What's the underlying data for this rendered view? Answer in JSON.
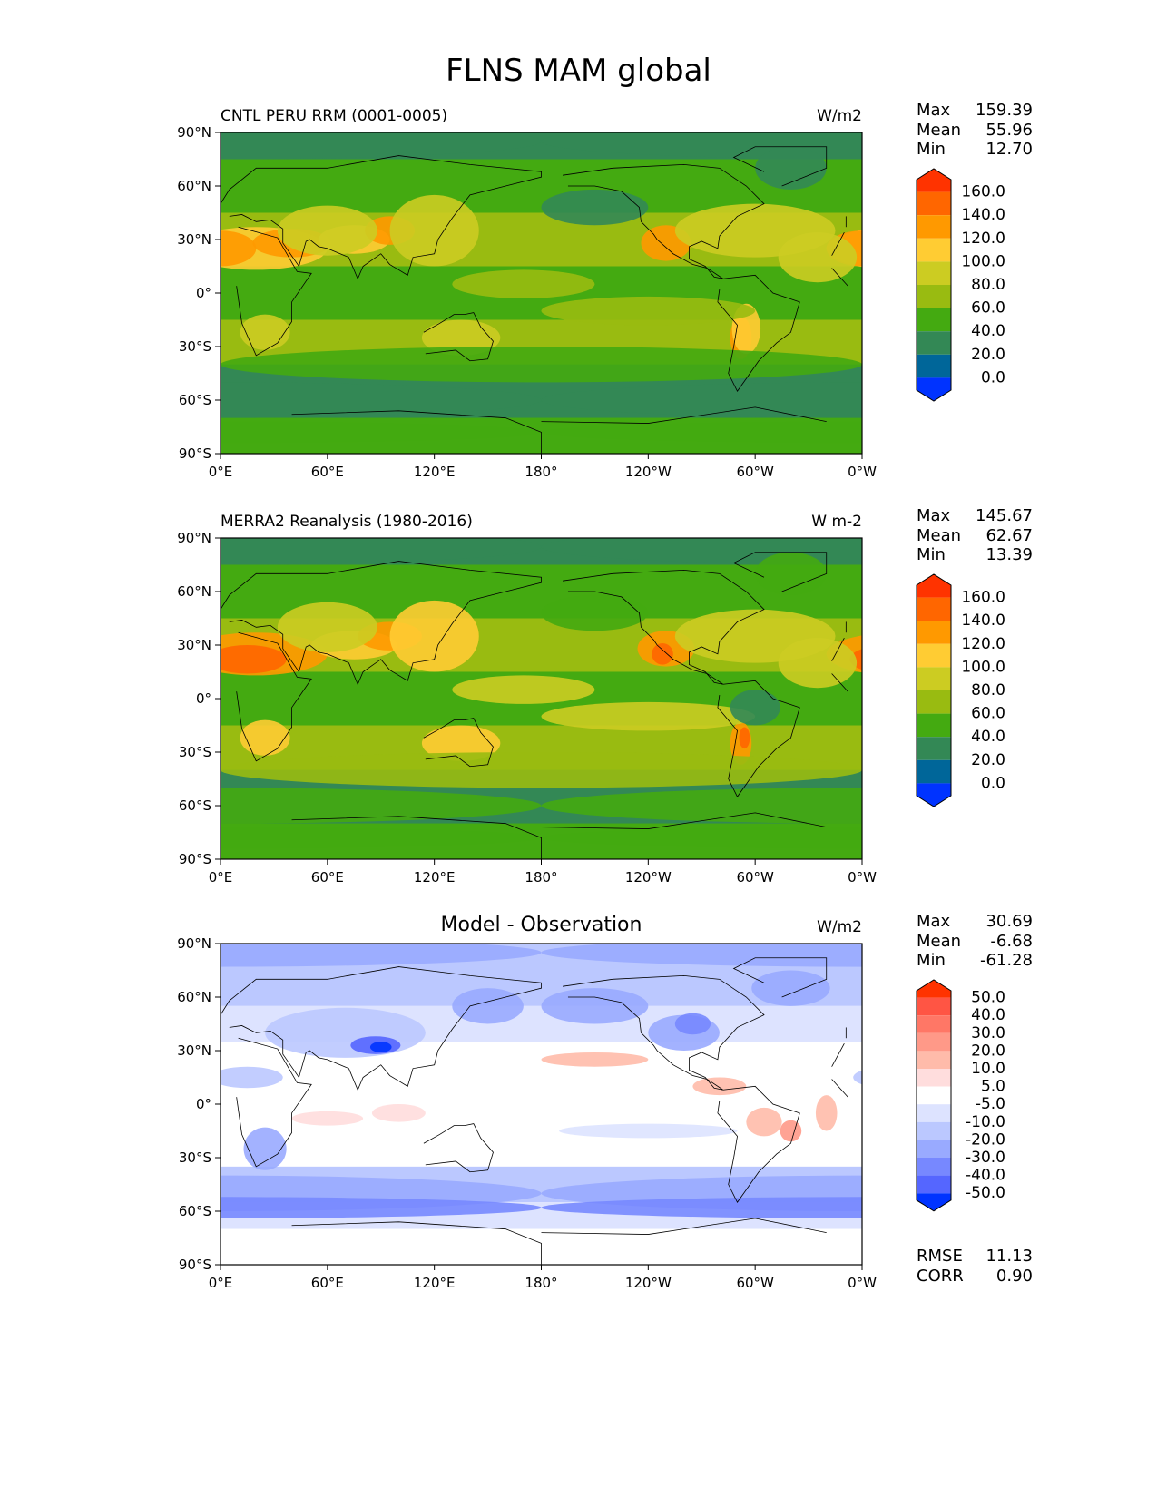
{
  "figure_title": "FLNS MAM global",
  "x_ticks": [
    "0°E",
    "60°E",
    "120°E",
    "180°",
    "120°W",
    "60°W",
    "0°W"
  ],
  "y_ticks": [
    "90°N",
    "60°N",
    "30°N",
    "0°",
    "30°S",
    "60°S",
    "90°S"
  ],
  "panels": [
    {
      "left_title": "CNTL PERU RRM (0001-0005)",
      "center_title": "",
      "units": "W/m2",
      "stats": [
        {
          "label": "Max",
          "value": "159.39"
        },
        {
          "label": "Mean",
          "value": "55.96"
        },
        {
          "label": "Min",
          "value": "12.70"
        }
      ],
      "colorbar": {
        "labels": [
          "160.0",
          "140.0",
          "120.0",
          "100.0",
          "80.0",
          "60.0",
          "40.0",
          "20.0",
          "0.0"
        ],
        "colors": [
          "#ff3300",
          "#ff6600",
          "#ff9900",
          "#ffcc33",
          "#cccc22",
          "#99bb11",
          "#44aa11",
          "#338855",
          "#006699",
          "#0033ff"
        ]
      },
      "extra_stats": []
    },
    {
      "left_title": "MERRA2 Reanalysis (1980-2016)",
      "center_title": "",
      "units": "W m-2",
      "stats": [
        {
          "label": "Max",
          "value": "145.67"
        },
        {
          "label": "Mean",
          "value": "62.67"
        },
        {
          "label": "Min",
          "value": "13.39"
        }
      ],
      "colorbar": {
        "labels": [
          "160.0",
          "140.0",
          "120.0",
          "100.0",
          "80.0",
          "60.0",
          "40.0",
          "20.0",
          "0.0"
        ],
        "colors": [
          "#ff3300",
          "#ff6600",
          "#ff9900",
          "#ffcc33",
          "#cccc22",
          "#99bb11",
          "#44aa11",
          "#338855",
          "#006699",
          "#0033ff"
        ]
      },
      "extra_stats": []
    },
    {
      "left_title": "",
      "center_title": "Model - Observation",
      "units": "W/m2",
      "stats": [
        {
          "label": "Max",
          "value": "30.69"
        },
        {
          "label": "Mean",
          "value": "-6.68"
        },
        {
          "label": "Min",
          "value": "-61.28"
        }
      ],
      "colorbar": {
        "labels": [
          "50.0",
          "40.0",
          "30.0",
          "20.0",
          "10.0",
          "5.0",
          "-5.0",
          "-10.0",
          "-20.0",
          "-30.0",
          "-40.0",
          "-50.0"
        ],
        "colors": [
          "#ff3300",
          "#ff5544",
          "#ff7766",
          "#ff9988",
          "#ffbbaa",
          "#ffdddd",
          "#ffffff",
          "#dde3ff",
          "#bbc8ff",
          "#99aaff",
          "#7788ff",
          "#5566ff",
          "#0033ff"
        ]
      },
      "extra_stats": [
        {
          "label": "RMSE",
          "value": "11.13"
        },
        {
          "label": "CORR",
          "value": "0.90"
        }
      ]
    }
  ]
}
